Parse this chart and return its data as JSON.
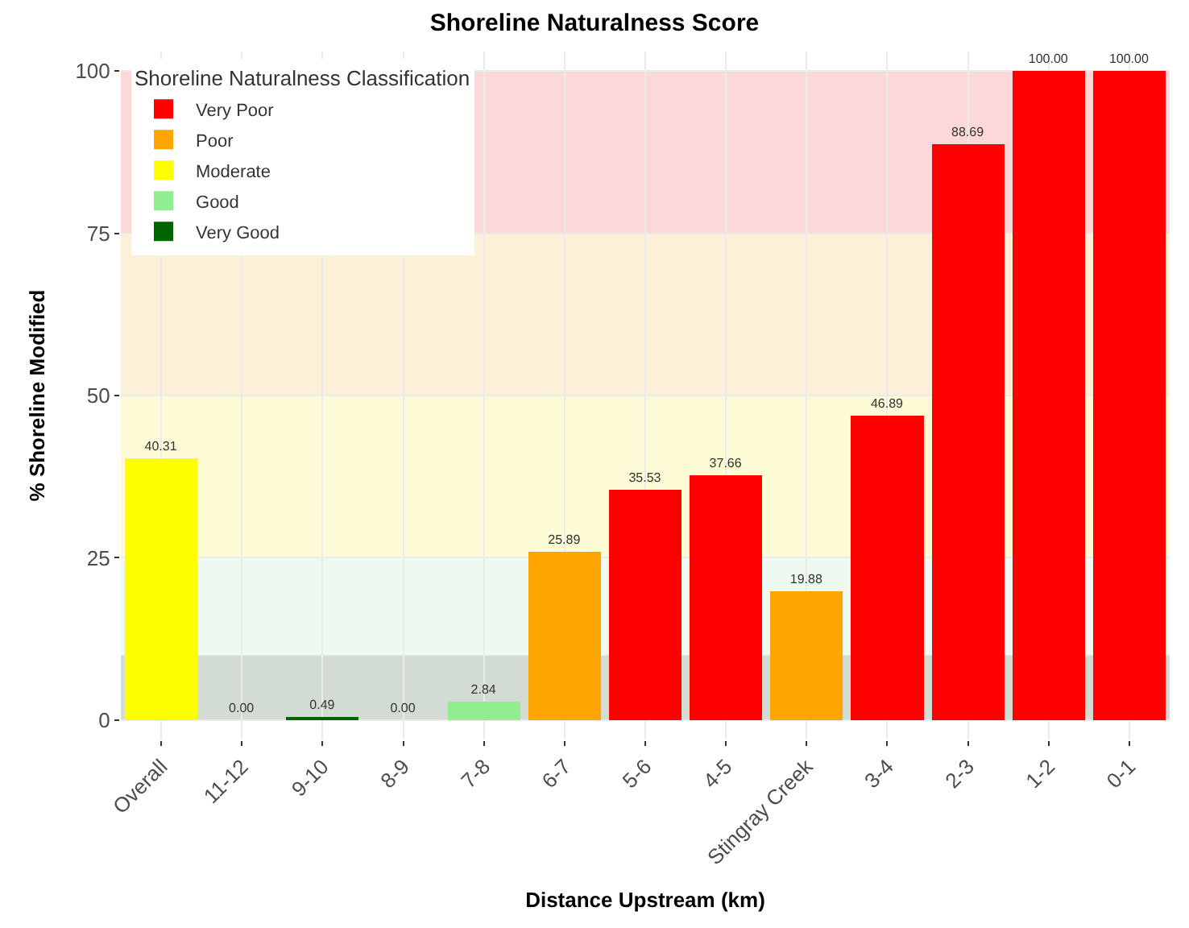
{
  "chart_data": {
    "type": "bar",
    "title": "Shoreline Naturalness Score",
    "xlabel": "Distance Upstream (km)",
    "ylabel": "% Shoreline Modified",
    "legend_title": "Shoreline Naturalness Classification",
    "categories": [
      "Overall",
      "11-12",
      "9-10",
      "8-9",
      "7-8",
      "6-7",
      "5-6",
      "4-5",
      "Stingray Creek",
      "3-4",
      "2-3",
      "1-2",
      "0-1"
    ],
    "stacked": true,
    "series": [
      {
        "name": "Very Poor",
        "color": "#ff0000",
        "values": [
          null,
          null,
          null,
          null,
          null,
          null,
          35.53,
          37.66,
          null,
          46.89,
          88.69,
          100,
          100
        ],
        "value_labels": [
          null,
          null,
          null,
          null,
          null,
          null,
          "35.53",
          "37.66",
          null,
          "46.89",
          "88.69",
          "100.00",
          "100.00"
        ]
      },
      {
        "name": "Poor",
        "color": "#ffa500",
        "values": [
          null,
          null,
          null,
          null,
          null,
          25.89,
          null,
          null,
          19.88,
          null,
          null,
          null,
          null
        ],
        "value_labels": [
          null,
          null,
          null,
          null,
          null,
          "25.89",
          null,
          null,
          "19.88",
          null,
          null,
          null,
          null
        ]
      },
      {
        "name": "Moderate",
        "color": "#ffff00",
        "values": [
          40.31,
          null,
          null,
          null,
          null,
          null,
          null,
          null,
          null,
          null,
          null,
          null,
          null
        ],
        "value_labels": [
          "40.31",
          null,
          null,
          null,
          null,
          null,
          null,
          null,
          null,
          null,
          null,
          null,
          null
        ]
      },
      {
        "name": "Good",
        "color": "#90ee90",
        "values": [
          null,
          null,
          null,
          null,
          2.84,
          null,
          null,
          null,
          null,
          null,
          null,
          null,
          null
        ],
        "value_labels": [
          null,
          null,
          null,
          null,
          "2.84",
          null,
          null,
          null,
          null,
          null,
          null,
          null,
          null
        ]
      },
      {
        "name": "Very Good",
        "color": "#006400",
        "values": [
          null,
          0,
          0.49,
          0,
          null,
          null,
          null,
          null,
          null,
          null,
          null,
          null,
          null
        ],
        "value_labels": [
          null,
          "0.00",
          "0.49",
          "0.00",
          null,
          null,
          null,
          null,
          null,
          null,
          null,
          null,
          null
        ]
      }
    ],
    "bands": [
      {
        "axis": "y",
        "from": 0,
        "to": 10,
        "color": "#d3dcd3"
      },
      {
        "axis": "y",
        "from": 10,
        "to": 25,
        "color": "#eefaf1"
      },
      {
        "axis": "y",
        "from": 25,
        "to": 50,
        "color": "#fdfbd6"
      },
      {
        "axis": "y",
        "from": 50,
        "to": 75,
        "color": "#fdf0d9"
      },
      {
        "axis": "y",
        "from": 75,
        "to": 100,
        "color": "#fdd8d8"
      }
    ],
    "ylim": [
      -3,
      103
    ],
    "yticks": [
      0,
      25,
      50,
      75,
      100
    ],
    "grid": true,
    "legend": "top left"
  }
}
